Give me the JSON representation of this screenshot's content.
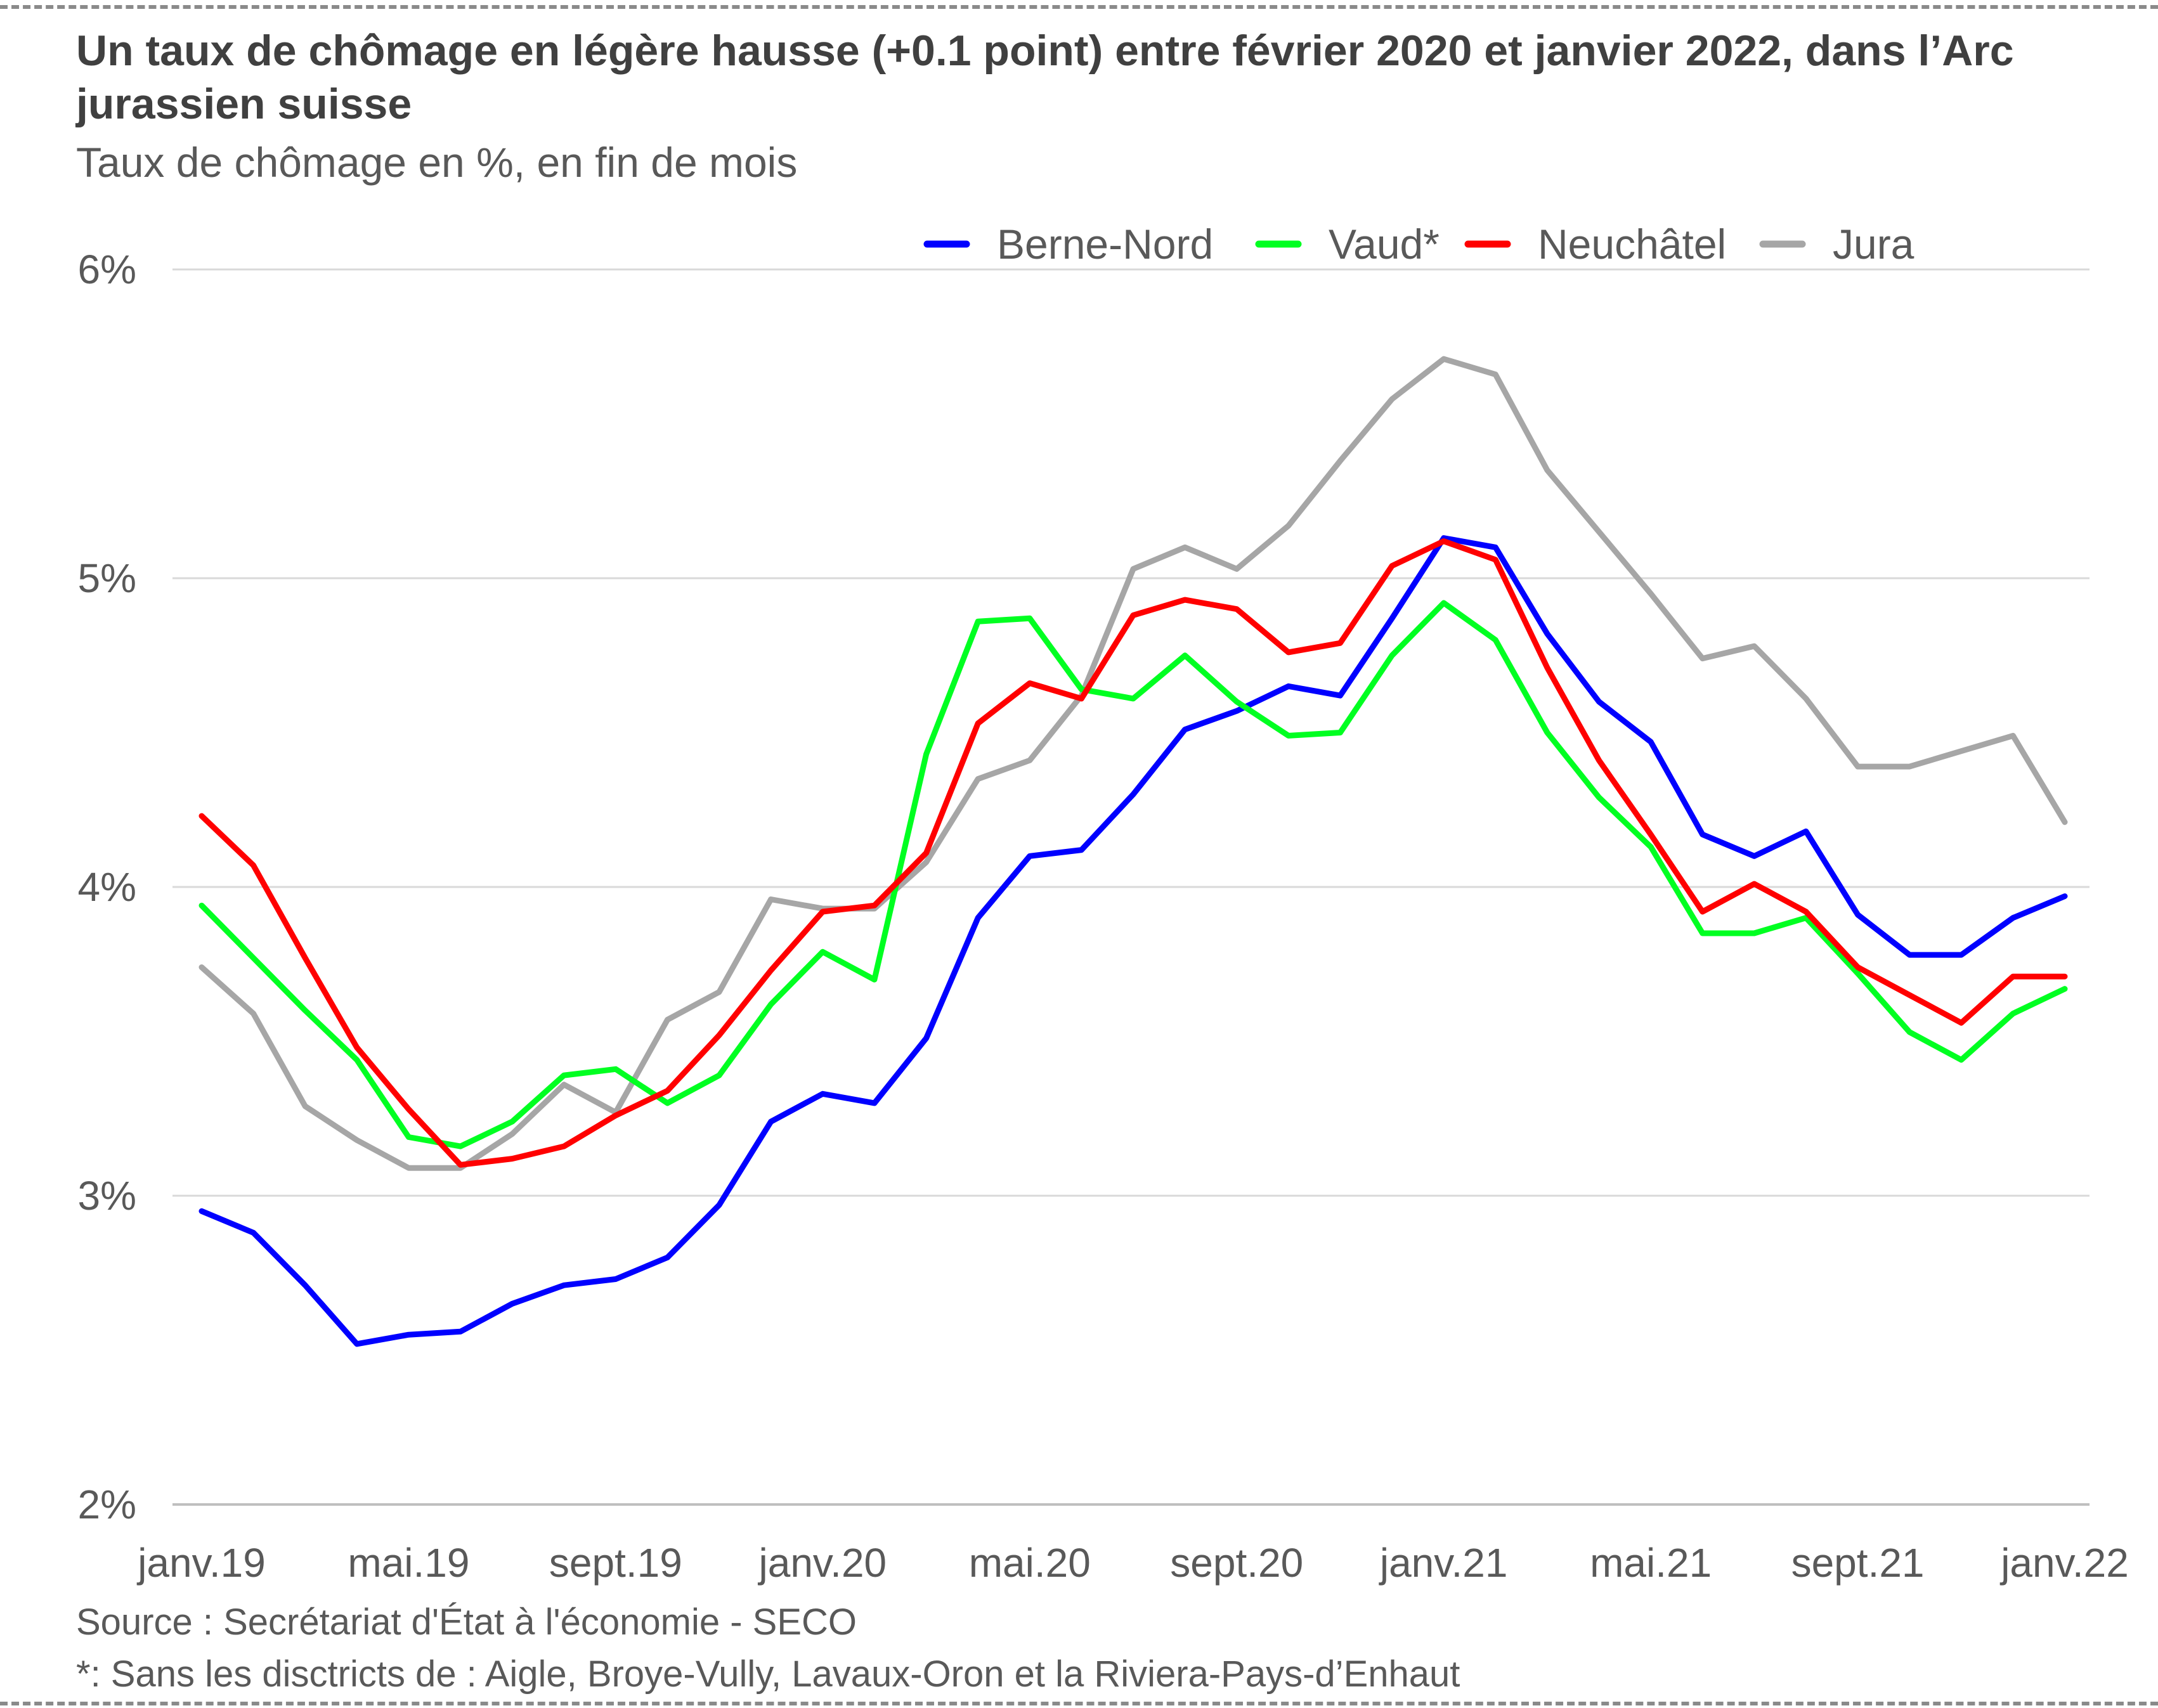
{
  "title": "Un taux de chômage en légère hausse (+0.1 point) entre février 2020 et janvier 2022, dans l’Arc jurassien suisse",
  "subtitle": "Taux de chômage en %, en fin de mois",
  "source": "Source : Secrétariat d'État à l'économie - SECO",
  "note": "*: Sans les disctricts de : Aigle, Broye-Vully, Lavaux-Oron et la Riviera-Pays-d’Enhaut",
  "chart_data": {
    "type": "line",
    "title": "Un taux de chômage en légère hausse (+0.1 point) entre février 2020 et janvier 2022, dans l’Arc jurassien suisse",
    "xlabel": "",
    "ylabel": "Taux de chômage en %, en fin de mois",
    "ylim": [
      2,
      6
    ],
    "yticks": [
      2,
      3,
      4,
      5,
      6
    ],
    "ytick_labels": [
      "2%",
      "3%",
      "4%",
      "5%",
      "6%"
    ],
    "grid": "horizontal",
    "legend_position": "top",
    "x_tick_labels": [
      "janv.19",
      "mai.19",
      "sept.19",
      "janv.20",
      "mai.20",
      "sept.20",
      "janv.21",
      "mai.21",
      "sept.21",
      "janv.22"
    ],
    "x_tick_index": [
      0,
      4,
      8,
      12,
      16,
      20,
      24,
      28,
      32,
      36
    ],
    "x": [
      "2019-01",
      "2019-02",
      "2019-03",
      "2019-04",
      "2019-05",
      "2019-06",
      "2019-07",
      "2019-08",
      "2019-09",
      "2019-10",
      "2019-11",
      "2019-12",
      "2020-01",
      "2020-02",
      "2020-03",
      "2020-04",
      "2020-05",
      "2020-06",
      "2020-07",
      "2020-08",
      "2020-09",
      "2020-10",
      "2020-11",
      "2020-12",
      "2021-01",
      "2021-02",
      "2021-03",
      "2021-04",
      "2021-05",
      "2021-06",
      "2021-07",
      "2021-08",
      "2021-09",
      "2021-10",
      "2021-11",
      "2021-12",
      "2022-01"
    ],
    "series": [
      {
        "name": "Berne-Nord",
        "color": "#0000ff",
        "values": [
          2.95,
          2.88,
          2.71,
          2.52,
          2.55,
          2.56,
          2.65,
          2.71,
          2.73,
          2.8,
          2.97,
          3.24,
          3.33,
          3.3,
          3.51,
          3.9,
          4.1,
          4.12,
          4.3,
          4.51,
          4.57,
          4.65,
          4.62,
          4.87,
          5.13,
          5.1,
          4.82,
          4.6,
          4.47,
          4.17,
          4.1,
          4.18,
          3.91,
          3.78,
          3.78,
          3.9,
          3.97
        ]
      },
      {
        "name": "Vaud*",
        "color": "#00ff21",
        "values": [
          3.94,
          3.77,
          3.6,
          3.44,
          3.19,
          3.16,
          3.24,
          3.39,
          3.41,
          3.3,
          3.39,
          3.62,
          3.79,
          3.7,
          4.43,
          4.86,
          4.87,
          4.64,
          4.61,
          4.75,
          4.6,
          4.49,
          4.5,
          4.75,
          4.92,
          4.8,
          4.5,
          4.29,
          4.13,
          3.85,
          3.85,
          3.9,
          3.72,
          3.53,
          3.44,
          3.59,
          3.67
        ]
      },
      {
        "name": "Neuchâtel",
        "color": "#ff0000",
        "values": [
          4.23,
          4.07,
          3.77,
          3.48,
          3.28,
          3.1,
          3.12,
          3.16,
          3.26,
          3.34,
          3.52,
          3.73,
          3.92,
          3.94,
          4.11,
          4.53,
          4.66,
          4.61,
          4.88,
          4.93,
          4.9,
          4.76,
          4.79,
          5.04,
          5.12,
          5.06,
          4.71,
          4.41,
          4.17,
          3.92,
          4.01,
          3.92,
          3.74,
          3.65,
          3.56,
          3.71,
          3.71
        ]
      },
      {
        "name": "Jura",
        "color": "#a6a6a6",
        "values": [
          3.74,
          3.59,
          3.29,
          3.18,
          3.09,
          3.09,
          3.2,
          3.36,
          3.27,
          3.57,
          3.66,
          3.96,
          3.93,
          3.93,
          4.08,
          4.35,
          4.41,
          4.62,
          5.03,
          5.1,
          5.03,
          5.17,
          5.38,
          5.58,
          5.71,
          5.66,
          5.35,
          5.15,
          4.95,
          4.74,
          4.78,
          4.61,
          4.39,
          4.39,
          4.44,
          4.49,
          4.21
        ]
      }
    ]
  }
}
